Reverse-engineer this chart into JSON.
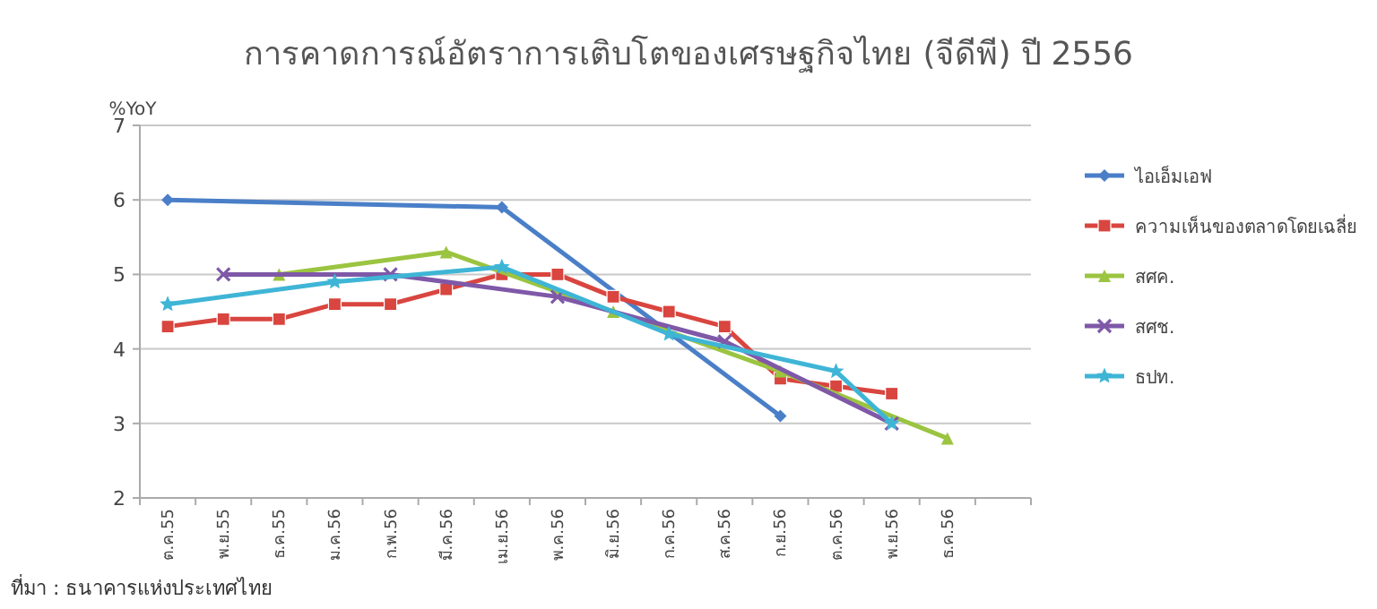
{
  "chart_data": {
    "type": "line",
    "title": "การคาดการณ์อัตราการเติบโตของเศรษฐกิจไทย (จีดีพี) ปี 2556",
    "ylabel": "%YoY",
    "categories": [
      "ต.ค.55",
      "พ.ย.55",
      "ธ.ค.55",
      "ม.ค.56",
      "ก.พ.56",
      "มี.ค.56",
      "เม.ย.56",
      "พ.ค.56",
      "มิ.ย.56",
      "ก.ค.56",
      "ส.ค.56",
      "ก.ย.56",
      "ต.ค.56",
      "พ.ย.56",
      "ธ.ค.56",
      null
    ],
    "series": [
      {
        "name": "ไอเอ็มเอฟ",
        "color": "#4a7fc8",
        "marker": "diamond",
        "values": [
          6.0,
          null,
          null,
          null,
          null,
          null,
          5.9,
          null,
          null,
          null,
          null,
          3.1,
          null,
          null,
          null,
          null
        ]
      },
      {
        "name": "ความเห็นของตลาดโดยเฉลี่ย",
        "color": "#d9453f",
        "marker": "square",
        "values": [
          4.3,
          4.4,
          4.4,
          4.6,
          4.6,
          4.8,
          5.0,
          5.0,
          4.7,
          4.5,
          4.3,
          3.6,
          3.5,
          3.4,
          null,
          null
        ]
      },
      {
        "name": "สศค.",
        "color": "#9bc440",
        "marker": "triangle",
        "values": [
          null,
          null,
          5.0,
          null,
          null,
          5.3,
          null,
          null,
          4.5,
          null,
          null,
          3.7,
          null,
          null,
          2.8,
          null
        ]
      },
      {
        "name": "สศช.",
        "color": "#7f58a8",
        "marker": "cross",
        "values": [
          null,
          5.0,
          null,
          null,
          5.0,
          null,
          null,
          4.7,
          null,
          null,
          4.1,
          null,
          null,
          3.0,
          null,
          null
        ]
      },
      {
        "name": "ธปท.",
        "color": "#3fb5d6",
        "marker": "star",
        "values": [
          4.6,
          null,
          null,
          4.9,
          null,
          null,
          5.1,
          null,
          null,
          4.2,
          null,
          null,
          3.7,
          3.0,
          null,
          null
        ]
      }
    ],
    "ylim": [
      2,
      7
    ],
    "yticks": [
      2,
      3,
      4,
      5,
      6,
      7
    ],
    "grid": "y",
    "legend": "right",
    "line_style": "solid",
    "annotations": [
      "ที่มา : ธนาคารแห่งประเทศไทย"
    ]
  }
}
